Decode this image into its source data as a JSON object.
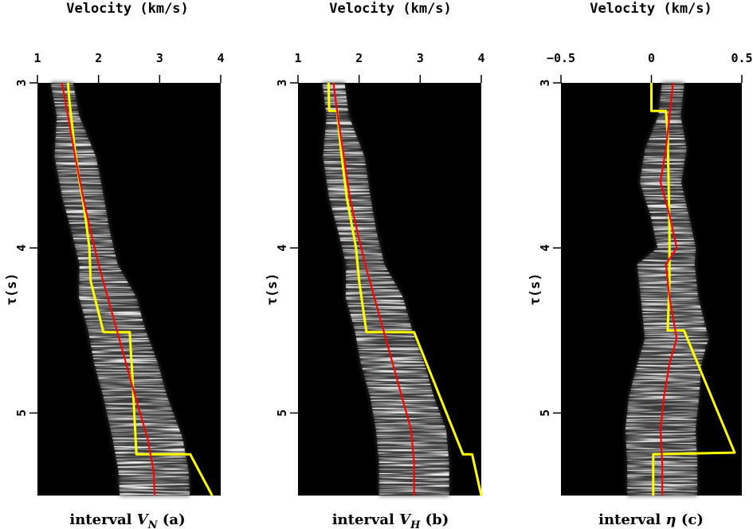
{
  "chart_data": [
    {
      "type": "line",
      "title": "Velocity (km/s)",
      "xlabel_parts": [
        "interval ",
        "V",
        "N",
        "  (a)"
      ],
      "ylabel": "τ(s)",
      "xlim": [
        1,
        4
      ],
      "ylim": [
        3,
        5.5
      ],
      "xticks": [
        "1",
        "2",
        "3",
        "4"
      ],
      "yticks": [
        "3",
        "4",
        "5"
      ],
      "background": "semblance panel (grayscale, black background)",
      "series": [
        {
          "name": "picked interval velocity",
          "color": "#ffff00",
          "x": [
            1.5,
            1.52,
            1.55,
            1.58,
            1.61,
            1.65,
            1.69,
            1.74,
            1.78,
            1.85,
            1.87,
            2.08,
            2.51,
            2.55,
            2.62,
            3.5,
            3.86
          ],
          "y": [
            3.0,
            3.1,
            3.2,
            3.3,
            3.4,
            3.5,
            3.6,
            3.7,
            3.8,
            4.0,
            4.2,
            4.51,
            4.51,
            4.75,
            5.25,
            5.25,
            5.5
          ]
        },
        {
          "name": "smooth velocity",
          "color": "#ff0000",
          "x": [
            1.4,
            1.5,
            1.62,
            1.75,
            1.87,
            2.0,
            2.15,
            2.3,
            2.45,
            2.6,
            2.8,
            2.9,
            2.92
          ],
          "y": [
            3.0,
            3.2,
            3.45,
            3.7,
            3.9,
            4.1,
            4.3,
            4.5,
            4.7,
            4.9,
            5.15,
            5.35,
            5.5
          ]
        }
      ]
    },
    {
      "type": "line",
      "title": "Velocity (km/s)",
      "xlabel_parts": [
        "interval ",
        "V",
        "H",
        "  (b)"
      ],
      "ylabel": "τ(s)",
      "xlim": [
        1,
        4
      ],
      "ylim": [
        3,
        5.5
      ],
      "xticks": [
        "1",
        "2",
        "3",
        "4"
      ],
      "yticks": [
        "3",
        "4",
        "5"
      ],
      "background": "semblance panel (grayscale, black background)",
      "series": [
        {
          "name": "picked interval velocity",
          "color": "#ffff00",
          "x": [
            1.5,
            1.51,
            1.64,
            1.7,
            1.8,
            1.95,
            2.0,
            2.12,
            2.9,
            3.7,
            3.85,
            4.0
          ],
          "y": [
            3.0,
            3.17,
            3.17,
            3.4,
            3.7,
            4.0,
            4.2,
            4.51,
            4.51,
            5.25,
            5.25,
            5.5
          ]
        },
        {
          "name": "smooth velocity",
          "color": "#ff0000",
          "x": [
            1.58,
            1.65,
            1.75,
            1.85,
            1.97,
            2.1,
            2.25,
            2.4,
            2.55,
            2.7,
            2.85,
            2.9,
            2.9
          ],
          "y": [
            3.0,
            3.2,
            3.45,
            3.7,
            3.9,
            4.1,
            4.3,
            4.5,
            4.7,
            4.9,
            5.1,
            5.3,
            5.5
          ]
        }
      ]
    },
    {
      "type": "line",
      "title": "Velocity (km/s)",
      "xlabel_parts": [
        "interval ",
        "η",
        "",
        "  (c)"
      ],
      "ylabel": "τ(s)",
      "xlim": [
        -0.5,
        0.5
      ],
      "ylim": [
        3,
        5.5
      ],
      "xticks": [
        "−0.5",
        "0",
        "0.5"
      ],
      "yticks": [
        "3",
        "4",
        "5"
      ],
      "background": "semblance panel (grayscale, black background)",
      "series": [
        {
          "name": "picked interval eta",
          "color": "#ffff00",
          "x": [
            0.0,
            0.0,
            0.08,
            0.09,
            0.1,
            0.1,
            0.09,
            0.18,
            0.46,
            0.01,
            0.01
          ],
          "y": [
            3.0,
            3.17,
            3.17,
            3.3,
            3.9,
            4.2,
            4.5,
            4.5,
            5.24,
            5.25,
            5.5
          ]
        },
        {
          "name": "smooth eta",
          "color": "#ff0000",
          "x": [
            0.12,
            0.1,
            0.08,
            0.05,
            0.1,
            0.14,
            0.08,
            0.1,
            0.14,
            0.1,
            0.07,
            0.05,
            0.06,
            0.06
          ],
          "y": [
            3.0,
            3.2,
            3.4,
            3.6,
            3.8,
            4.0,
            4.1,
            4.3,
            4.55,
            4.7,
            4.9,
            5.1,
            5.3,
            5.5
          ]
        }
      ]
    }
  ]
}
